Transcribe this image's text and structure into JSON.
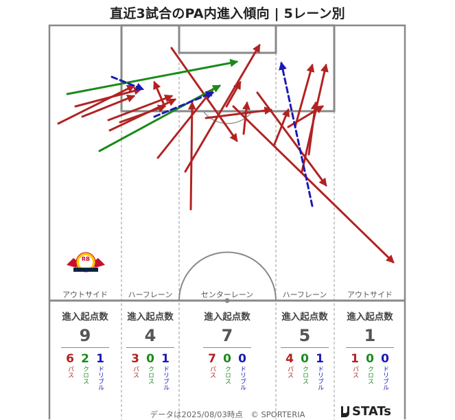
{
  "title": "直近3試合のPA内進入傾向 | 5レーン別",
  "lanes": [
    {
      "label": "アウトサイド",
      "stat_header": "進入起点数",
      "total": "9",
      "pass": "6",
      "cross": "2",
      "dribble": "1"
    },
    {
      "label": "ハーフレーン",
      "stat_header": "進入起点数",
      "total": "4",
      "pass": "3",
      "cross": "0",
      "dribble": "1"
    },
    {
      "label": "センターレーン",
      "stat_header": "進入起点数",
      "total": "7",
      "pass": "7",
      "cross": "0",
      "dribble": "0"
    },
    {
      "label": "ハーフレーン",
      "stat_header": "進入起点数",
      "total": "5",
      "pass": "4",
      "cross": "0",
      "dribble": "1"
    },
    {
      "label": "アウトサイド",
      "stat_header": "進入起点数",
      "total": "1",
      "pass": "1",
      "cross": "0",
      "dribble": "0"
    }
  ],
  "legend_labels": {
    "pass": "パス",
    "cross": "クロス",
    "dribble": "ドリブル"
  },
  "colors": {
    "pass": "#b22222",
    "cross": "#1a8a1a",
    "dribble": "#1a1ab5",
    "pitch_line": "#888888"
  },
  "logo_text": "RB",
  "footer": "データは2025/08/03時点　© SPORTERIA",
  "brand": "STATs",
  "chart_data": {
    "type": "scatter",
    "title": "直近3試合のPA内進入傾向 | 5レーン別",
    "categories": [
      "アウトサイド",
      "ハーフレーン",
      "センターレーン",
      "ハーフレーン",
      "アウトサイド"
    ],
    "series": [
      {
        "name": "パス",
        "values": [
          6,
          3,
          7,
          4,
          1
        ]
      },
      {
        "name": "クロス",
        "values": [
          2,
          0,
          0,
          0,
          0
        ]
      },
      {
        "name": "ドリブル",
        "values": [
          1,
          1,
          0,
          1,
          0
        ]
      }
    ],
    "arrows": [
      {
        "kind": "pass",
        "from": [
          85,
          180
        ],
        "to": [
          195,
          125
        ]
      },
      {
        "kind": "pass",
        "from": [
          110,
          155
        ],
        "to": [
          205,
          130
        ]
      },
      {
        "kind": "pass",
        "from": [
          120,
          170
        ],
        "to": [
          195,
          140
        ]
      },
      {
        "kind": "pass",
        "from": [
          158,
          175
        ],
        "to": [
          250,
          140
        ]
      },
      {
        "kind": "pass",
        "from": [
          160,
          190
        ],
        "to": [
          255,
          145
        ]
      },
      {
        "kind": "pass",
        "from": [
          175,
          178
        ],
        "to": [
          240,
          155
        ]
      },
      {
        "kind": "pass",
        "from": [
          230,
          230
        ],
        "to": [
          310,
          130
        ]
      },
      {
        "kind": "pass",
        "from": [
          240,
          155
        ],
        "to": [
          225,
          120
        ]
      },
      {
        "kind": "pass",
        "from": [
          250,
          70
        ],
        "to": [
          345,
          205
        ]
      },
      {
        "kind": "pass",
        "from": [
          270,
          250
        ],
        "to": [
          378,
          66
        ]
      },
      {
        "kind": "pass",
        "from": [
          278,
          305
        ],
        "to": [
          280,
          150
        ]
      },
      {
        "kind": "pass",
        "from": [
          300,
          172
        ],
        "to": [
          395,
          160
        ]
      },
      {
        "kind": "pass",
        "from": [
          330,
          155
        ],
        "to": [
          350,
          120
        ]
      },
      {
        "kind": "pass",
        "from": [
          355,
          195
        ],
        "to": [
          360,
          150
        ]
      },
      {
        "kind": "pass",
        "from": [
          340,
          155
        ],
        "to": [
          573,
          382
        ]
      },
      {
        "kind": "pass",
        "from": [
          400,
          210
        ],
        "to": [
          420,
          160
        ]
      },
      {
        "kind": "pass",
        "from": [
          420,
          185
        ],
        "to": [
          470,
          155
        ]
      },
      {
        "kind": "pass",
        "from": [
          440,
          250
        ],
        "to": [
          475,
          95
        ]
      },
      {
        "kind": "pass",
        "from": [
          430,
          185
        ],
        "to": [
          455,
          95
        ]
      },
      {
        "kind": "pass",
        "from": [
          450,
          225
        ],
        "to": [
          460,
          150
        ]
      },
      {
        "kind": "pass",
        "from": [
          375,
          135
        ],
        "to": [
          475,
          270
        ]
      },
      {
        "kind": "cross",
        "from": [
          98,
          137
        ],
        "to": [
          345,
          90
        ]
      },
      {
        "kind": "cross",
        "from": [
          145,
          220
        ],
        "to": [
          320,
          125
        ]
      },
      {
        "kind": "dribble",
        "from": [
          163,
          112
        ],
        "to": [
          208,
          130
        ]
      },
      {
        "kind": "dribble",
        "from": [
          225,
          170
        ],
        "to": [
          310,
          135
        ]
      },
      {
        "kind": "dribble",
        "from": [
          455,
          300
        ],
        "to": [
          410,
          92
        ]
      }
    ]
  }
}
